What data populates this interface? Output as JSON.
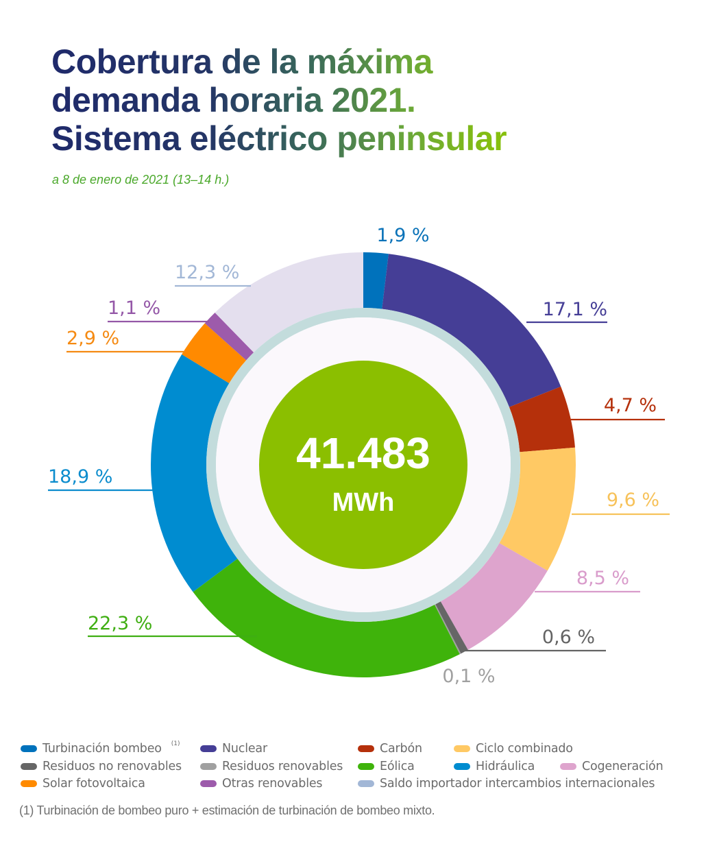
{
  "title": {
    "lines": [
      "Cobertura de la máxima",
      "demanda horaria 2021.",
      "Sistema eléctrico peninsular"
    ],
    "subtitle": "a 8 de enero de 2021 (13–14 h.)"
  },
  "center": {
    "value": "41.483",
    "unit": "MWh",
    "color": "#8bbf00"
  },
  "chart_data": {
    "type": "pie",
    "variant": "donut",
    "title": "Cobertura de la máxima demanda horaria 2021. Sistema eléctrico peninsular",
    "subtitle": "a 8 de enero de 2021 (13–14 h.)",
    "total": "41.483 MWh",
    "start": "top, clockwise",
    "slices": [
      {
        "key": "turbinacion_bombeo",
        "name": "Turbinación bombeo",
        "value": 1.9,
        "label": "1,9 %",
        "color": "#0072bc",
        "label_color": "#0a72b8"
      },
      {
        "key": "nuclear",
        "name": "Nuclear",
        "value": 17.1,
        "label": "17,1 %",
        "color": "#453e96",
        "label_color": "#453e96"
      },
      {
        "key": "carbon",
        "name": "Carbón",
        "value": 4.7,
        "label": "4,7 %",
        "color": "#b5300b",
        "label_color": "#b5300b"
      },
      {
        "key": "ciclo_combinado",
        "name": "Ciclo combinado",
        "value": 9.6,
        "label": "9,6 %",
        "color": "#ffc964",
        "label_color": "#f7c25a"
      },
      {
        "key": "cogeneracion",
        "name": "Cogeneración",
        "value": 8.5,
        "label": "8,5 %",
        "color": "#dea4cd",
        "label_color": "#d99ccb"
      },
      {
        "key": "residuos_no_renovables",
        "name": "Residuos no renovables",
        "value": 0.6,
        "label": "0,6 %",
        "color": "#666666",
        "label_color": "#636363"
      },
      {
        "key": "residuos_renovables",
        "name": "Residuos renovables",
        "value": 0.1,
        "label": "0,1 %",
        "color": "#a0a0a0",
        "label_color": "#a0a0a0"
      },
      {
        "key": "eolica",
        "name": "Eólica",
        "value": 22.3,
        "label": "22,3 %",
        "color": "#3fb30b",
        "label_color": "#3fae12"
      },
      {
        "key": "hidraulica",
        "name": "Hidráulica",
        "value": 18.9,
        "label": "18,9 %",
        "color": "#008cd0",
        "label_color": "#0b8ccd"
      },
      {
        "key": "solar_fotovoltaica",
        "name": "Solar fotovoltaica",
        "value": 2.9,
        "label": "2,9 %",
        "color": "#ff8a00",
        "label_color": "#f58a12"
      },
      {
        "key": "otras_renovables",
        "name": "Otras renovables",
        "value": 1.1,
        "label": "1,1 %",
        "color": "#9d5bab",
        "label_color": "#9457a7"
      },
      {
        "key": "saldo_importador",
        "name": "Saldo importador intercambios internacionales",
        "value": 12.3,
        "label": "12,3 %",
        "color": "#e4dfee",
        "label_color": "#a2b7d6"
      }
    ]
  },
  "legend": {
    "rows": [
      [
        {
          "label": "Turbinación bombeo",
          "sup": "(1)",
          "color": "#0072bc"
        },
        {
          "label": "Nuclear",
          "color": "#453e96"
        },
        {
          "label": "Carbón",
          "color": "#b5300b"
        },
        {
          "label": "Ciclo combinado",
          "color": "#ffc964"
        }
      ],
      [
        {
          "label": "Residuos no renovables",
          "color": "#666666"
        },
        {
          "label": "Residuos renovables",
          "color": "#a0a0a0"
        },
        {
          "label": "Eólica",
          "color": "#3fb30b"
        },
        {
          "label": "Hidráulica",
          "color": "#008cd0"
        },
        {
          "label": "Cogeneración",
          "color": "#dea4cd"
        }
      ],
      [
        {
          "label": "Solar fotovoltaica",
          "color": "#ff8a00"
        },
        {
          "label": "Otras renovables",
          "color": "#9d5bab"
        },
        {
          "label": "Saldo importador intercambios internacionales",
          "color": "#a2b7d6"
        }
      ]
    ]
  },
  "footnote": "(1) Turbinación de bombeo puro + estimación de turbinación de bombeo mixto."
}
